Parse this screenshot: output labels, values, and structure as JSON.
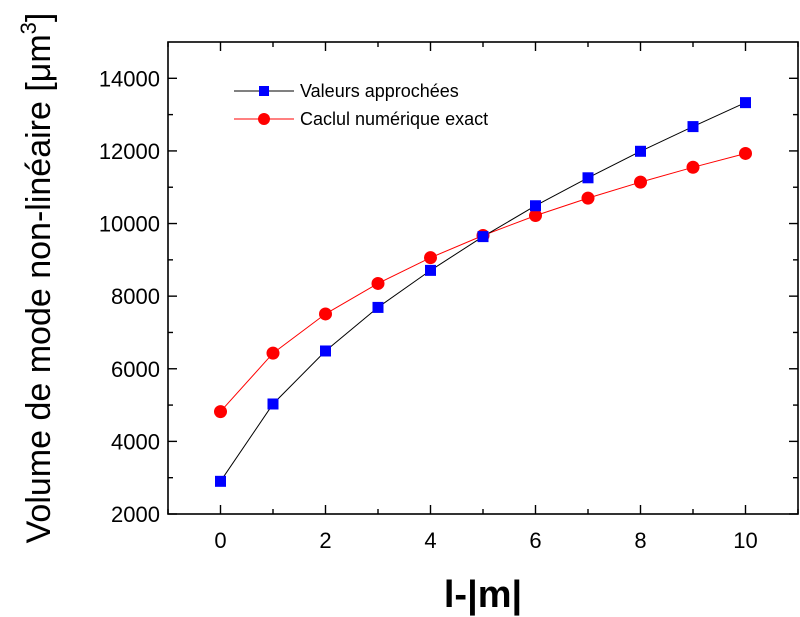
{
  "chart_data": {
    "type": "line",
    "x": [
      0,
      1,
      2,
      3,
      4,
      5,
      6,
      7,
      8,
      9,
      10
    ],
    "series": [
      {
        "name": "Valeurs approchées",
        "values": [
          2900,
          5030,
          6490,
          7690,
          8710,
          9640,
          10490,
          11260,
          11990,
          12670,
          13330
        ],
        "color": "#0000ff",
        "line_color": "#000000",
        "marker": "square"
      },
      {
        "name": "Caclul numérique exact",
        "values": [
          4820,
          6430,
          7510,
          8350,
          9060,
          9670,
          10220,
          10700,
          11140,
          11550,
          11930
        ],
        "color": "#ff0000",
        "line_color": "#ff0000",
        "marker": "circle"
      }
    ],
    "xlabel": "l-|m|",
    "ylabel_main": "Volume de mode non-linéaire [μm",
    "ylabel_sup": "3",
    "ylabel_close": "]",
    "xlim": [
      -1,
      11
    ],
    "ylim": [
      2000,
      15000
    ],
    "xticks_major": [
      0,
      2,
      4,
      6,
      8,
      10
    ],
    "yticks_major": [
      2000,
      4000,
      6000,
      8000,
      10000,
      12000,
      14000
    ],
    "grid": false,
    "legend_position": "top-left"
  }
}
